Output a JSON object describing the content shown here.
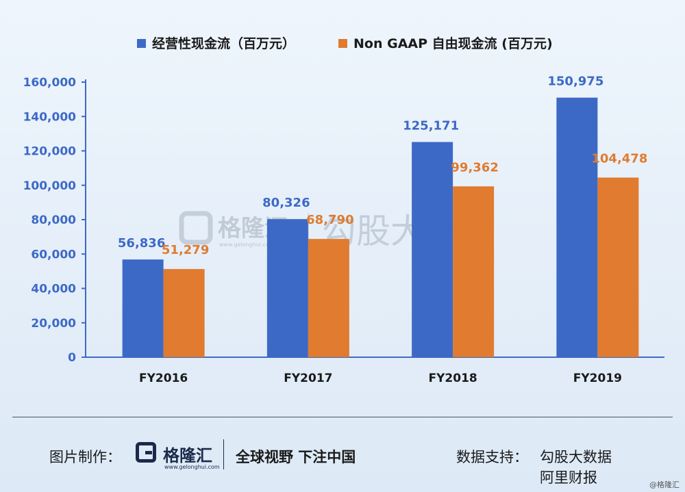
{
  "chart_data": {
    "type": "bar",
    "categories": [
      "FY2016",
      "FY2017",
      "FY2018",
      "FY2019"
    ],
    "series": [
      {
        "name": "经营性现金流（百万元）",
        "values": [
          56836,
          80326,
          125171,
          150975
        ],
        "value_labels": [
          "56,836",
          "80,326",
          "125,171",
          "150,975"
        ],
        "color": "#3d69c6",
        "label_color": "#3d69c6"
      },
      {
        "name": "Non GAAP 自由现金流 (百万元)",
        "values": [
          51279,
          68790,
          99362,
          104478
        ],
        "value_labels": [
          "51,279",
          "68,790",
          "99,362",
          "104,478"
        ],
        "color": "#e07b2f",
        "label_color": "#e07b2f"
      }
    ],
    "ylim": [
      0,
      160000
    ],
    "yticks": [
      0,
      20000,
      40000,
      60000,
      80000,
      100000,
      120000,
      140000,
      160000
    ],
    "ytick_labels": [
      "0",
      "20,000",
      "40,000",
      "60,000",
      "80,000",
      "100,000",
      "120,000",
      "140,000",
      "160,000"
    ],
    "legend_position": "top",
    "grid": false,
    "axis_color": "#3d69c6"
  },
  "watermark": {
    "brand": "格隆汇",
    "url": "www.gelonghui.com",
    "text": "勾股大数据"
  },
  "footer": {
    "made_by_label": "图片制作：",
    "brand": "格隆汇",
    "brand_url": "www.gelonghui.com",
    "slogan": "全球视野 下注中国",
    "source_label": "数据支持：",
    "sources": [
      "勾股大数据",
      "阿里财报"
    ]
  },
  "corner_mark": "@格隆汇"
}
